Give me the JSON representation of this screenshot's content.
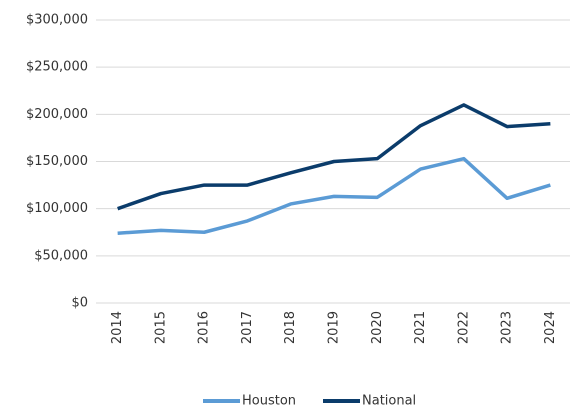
{
  "chart_data": {
    "type": "line",
    "categories": [
      "2014",
      "2015",
      "2016",
      "2017",
      "2018",
      "2019",
      "2020",
      "2021",
      "2022",
      "2023",
      "2024"
    ],
    "series": [
      {
        "name": "Houston",
        "color": "#5b9bd5",
        "values": [
          74000,
          77000,
          75000,
          87000,
          105000,
          113000,
          112000,
          142000,
          153000,
          111000,
          125000
        ]
      },
      {
        "name": "National",
        "color": "#0b3c6b",
        "values": [
          100000,
          116000,
          125000,
          125000,
          138000,
          150000,
          153000,
          188000,
          210000,
          187000,
          190000
        ]
      }
    ],
    "ylim": [
      0,
      300000
    ],
    "yticks": [
      {
        "value": 0,
        "label": "$0"
      },
      {
        "value": 50000,
        "label": "$50,000"
      },
      {
        "value": 100000,
        "label": "$100,000"
      },
      {
        "value": 150000,
        "label": "$150,000"
      },
      {
        "value": 200000,
        "label": "$200,000"
      },
      {
        "value": 250000,
        "label": "$250,000"
      },
      {
        "value": 300000,
        "label": "$300,000"
      }
    ],
    "grid": true,
    "legend": "bottom"
  }
}
